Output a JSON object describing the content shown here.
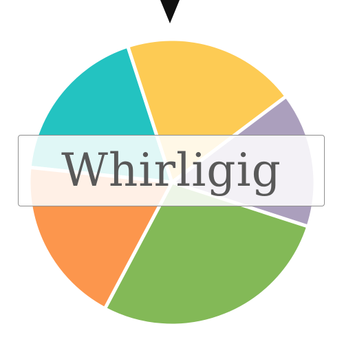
{
  "wheel": {
    "segments": [
      {
        "name": "teal",
        "color": "#23c3c1"
      },
      {
        "name": "yellow",
        "color": "#fdcb54"
      },
      {
        "name": "lavender",
        "color": "#ab9fbd"
      },
      {
        "name": "green",
        "color": "#83b957"
      },
      {
        "name": "orange",
        "color": "#fc964d"
      }
    ],
    "pointer_color": "#111111"
  },
  "result": {
    "text": "Whirligig"
  }
}
